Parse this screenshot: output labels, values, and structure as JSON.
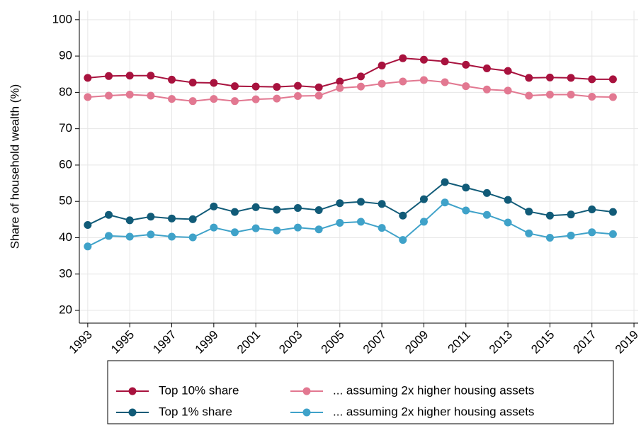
{
  "chart_data": {
    "type": "line",
    "y_label": "Share of household wealth (%)",
    "x": [
      1993,
      1994,
      1995,
      1996,
      1997,
      1998,
      1999,
      2000,
      2001,
      2002,
      2003,
      2004,
      2005,
      2006,
      2007,
      2008,
      2009,
      2010,
      2011,
      2012,
      2013,
      2014,
      2015,
      2016,
      2017,
      2018
    ],
    "series": [
      {
        "name": "Top 10% share",
        "color": "#a8123e",
        "values": [
          84,
          84.5,
          84.6,
          84.6,
          83.5,
          82.7,
          82.6,
          81.7,
          81.6,
          81.5,
          81.8,
          81.4,
          83,
          84.4,
          87.4,
          89.4,
          89,
          88.5,
          87.6,
          86.6,
          85.9,
          84,
          84.1,
          84,
          83.6,
          83.6
        ]
      },
      {
        "name": "... assuming 2x higher housing assets",
        "color": "#e27891",
        "values": [
          78.7,
          79.1,
          79.4,
          79.1,
          78.2,
          77.6,
          78.2,
          77.6,
          78.1,
          78.3,
          79,
          79.1,
          81.2,
          81.6,
          82.4,
          83,
          83.4,
          82.8,
          81.7,
          80.8,
          80.5,
          79.1,
          79.4,
          79.4,
          78.8,
          78.7
        ]
      },
      {
        "name": "Top 1% share",
        "color": "#115b78",
        "values": [
          43.5,
          46.3,
          44.8,
          45.8,
          45.3,
          45.1,
          48.6,
          47.1,
          48.4,
          47.7,
          48.2,
          47.6,
          49.5,
          49.9,
          49.3,
          46.1,
          50.6,
          55.3,
          53.8,
          52.3,
          50.4,
          47.2,
          46.1,
          46.4,
          47.8,
          47.1
        ]
      },
      {
        "name": "... assuming 2x higher housing assets",
        "color": "#3fa2c9",
        "values": [
          37.6,
          40.5,
          40.3,
          40.9,
          40.3,
          40.1,
          42.8,
          41.5,
          42.6,
          42,
          42.8,
          42.3,
          44.1,
          44.4,
          42.7,
          39.4,
          44.4,
          49.7,
          47.5,
          46.3,
          44.2,
          41.2,
          40,
          40.6,
          41.5,
          41
        ]
      }
    ],
    "xlim": [
      1992.6,
      2019.2
    ],
    "xticks": [
      1993,
      1995,
      1997,
      1999,
      2001,
      2003,
      2005,
      2007,
      2009,
      2011,
      2013,
      2015,
      2017,
      2019
    ],
    "ylim": [
      16.5,
      102.5
    ],
    "yticks": [
      20,
      30,
      40,
      50,
      60,
      70,
      80,
      90,
      100
    ],
    "grid": true
  }
}
